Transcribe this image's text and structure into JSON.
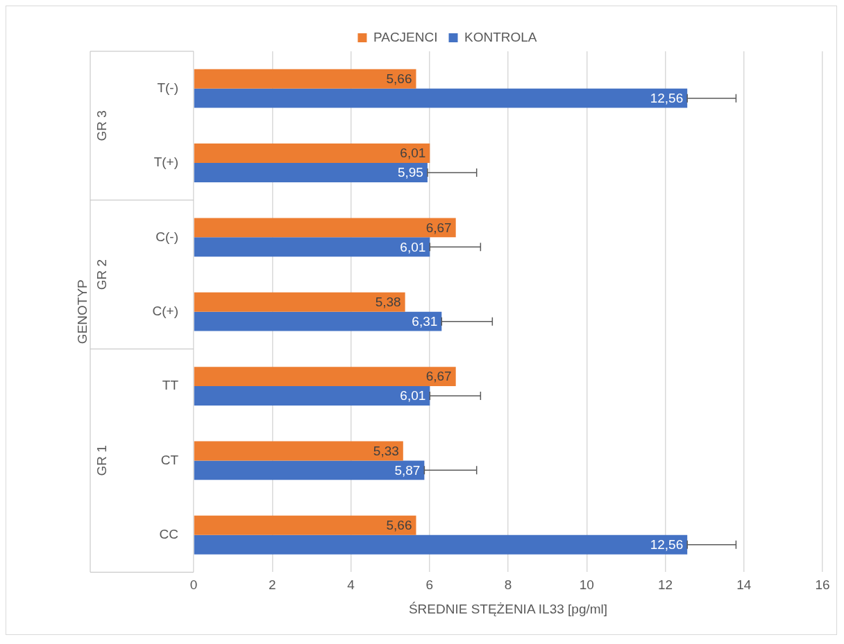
{
  "chart_data": {
    "type": "bar",
    "orientation": "horizontal",
    "categories": [
      "T(-)",
      "T(+)",
      "C(-)",
      "C(+)",
      "TT",
      "CT",
      "CC"
    ],
    "series": [
      {
        "name": "PACJENCI",
        "color": "#ed7d31",
        "values": [
          5.66,
          6.01,
          6.67,
          5.38,
          6.67,
          5.33,
          5.66
        ],
        "value_labels": [
          "5,66",
          "6,01",
          "6,67",
          "5,38",
          "6,67",
          "5,33",
          "5,66"
        ]
      },
      {
        "name": "KONTROLA",
        "color": "#4472c4",
        "values": [
          12.56,
          5.95,
          6.01,
          6.31,
          6.01,
          5.87,
          12.56
        ],
        "value_labels": [
          "12,56",
          "5,95",
          "6,01",
          "6,31",
          "6,01",
          "5,87",
          "12,56"
        ],
        "errors": [
          [
            12.56,
            13.8
          ],
          [
            5.95,
            7.2
          ],
          [
            6.01,
            7.3
          ],
          [
            6.31,
            7.6
          ],
          [
            6.01,
            7.3
          ],
          [
            5.87,
            7.2
          ],
          [
            12.56,
            13.8
          ]
        ]
      }
    ],
    "xlim": [
      0,
      16
    ],
    "xticks": [
      0,
      2,
      4,
      6,
      8,
      10,
      12,
      14,
      16
    ],
    "xlabel": "ŚREDNIE STĘŻENIA IL33 [pg/ml]",
    "ylabel": "GENOTYP",
    "annotations": [
      "GR 3",
      "GR 2",
      "GR 1"
    ],
    "grid": "x",
    "legend": "top"
  }
}
